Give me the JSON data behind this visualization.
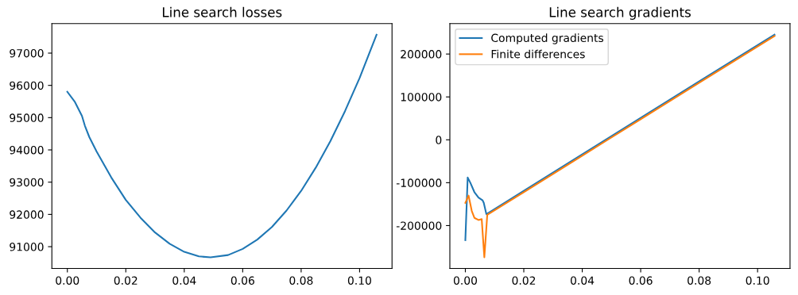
{
  "chart_data": [
    {
      "type": "line",
      "title": "Line search losses",
      "xlim": [
        -0.0053,
        0.1111
      ],
      "ylim": [
        90325,
        97915
      ],
      "xticks": [
        {
          "value": 0,
          "label": "0.00"
        },
        {
          "value": 0.02,
          "label": "0.02"
        },
        {
          "value": 0.04,
          "label": "0.04"
        },
        {
          "value": 0.06,
          "label": "0.06"
        },
        {
          "value": 0.08,
          "label": "0.08"
        },
        {
          "value": 0.1,
          "label": "0.10"
        }
      ],
      "yticks": [
        91000,
        92000,
        93000,
        94000,
        95000,
        96000,
        97000
      ],
      "grid": false,
      "legend": false,
      "series": [
        {
          "color": "#1f77b4",
          "x": [
            0,
            0.0025,
            0.005,
            0.006,
            0.0075,
            0.01,
            0.015,
            0.02,
            0.025,
            0.03,
            0.035,
            0.04,
            0.045,
            0.049,
            0.055,
            0.06,
            0.065,
            0.07,
            0.075,
            0.08,
            0.085,
            0.09,
            0.095,
            0.1,
            0.1058
          ],
          "values": [
            95800,
            95500,
            95050,
            94750,
            94400,
            93950,
            93150,
            92450,
            91900,
            91440,
            91090,
            90840,
            90700,
            90670,
            90740,
            90930,
            91220,
            91610,
            92120,
            92730,
            93450,
            94270,
            95200,
            96230,
            97570
          ]
        }
      ]
    },
    {
      "type": "line",
      "title": "Line search gradients",
      "xlim": [
        -0.0053,
        0.1111
      ],
      "ylim": [
        -299950,
        270950
      ],
      "xticks": [
        {
          "value": 0,
          "label": "0.00"
        },
        {
          "value": 0.02,
          "label": "0.02"
        },
        {
          "value": 0.04,
          "label": "0.04"
        },
        {
          "value": 0.06,
          "label": "0.06"
        },
        {
          "value": 0.08,
          "label": "0.08"
        },
        {
          "value": 0.1,
          "label": "0.10"
        }
      ],
      "yticks": [
        -200000,
        -100000,
        0,
        100000,
        200000
      ],
      "grid": false,
      "legend": "top left",
      "series": [
        {
          "name": "Computed gradients",
          "color": "#1f77b4",
          "x": [
            0,
            0.0008,
            0.0017,
            0.0031,
            0.0045,
            0.0059,
            0.0063,
            0.0072,
            0.02,
            0.04,
            0.06,
            0.08,
            0.1058
          ],
          "values": [
            -234000,
            -88000,
            -100000,
            -122000,
            -134500,
            -141000,
            -147000,
            -173500,
            -119000,
            -34000,
            51000,
            136000,
            245000
          ]
        },
        {
          "name": "Finite differences",
          "color": "#ff7f0e",
          "x": [
            0,
            0.0011,
            0.0022,
            0.0031,
            0.0045,
            0.0056,
            0.0065,
            0.0075,
            0.02,
            0.04,
            0.06,
            0.08,
            0.1058
          ],
          "values": [
            -147000,
            -130000,
            -166000,
            -182000,
            -187000,
            -185000,
            -274000,
            -175000,
            -122000,
            -37000,
            48000,
            133000,
            242000
          ]
        }
      ]
    }
  ]
}
